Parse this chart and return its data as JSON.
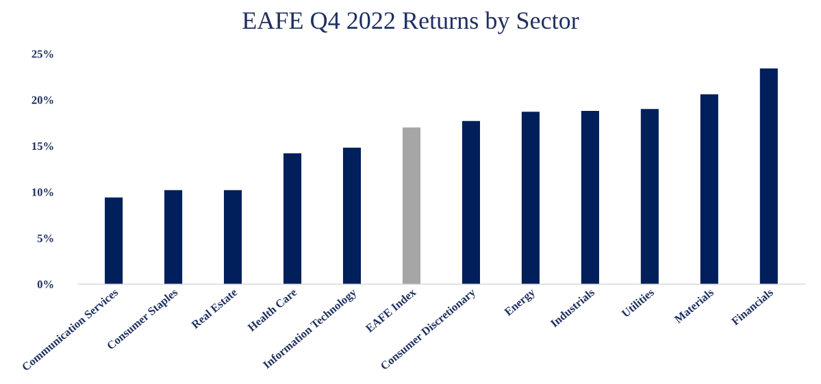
{
  "chart_data": {
    "type": "bar",
    "title": "EAFE Q4 2022 Returns by Sector",
    "categories": [
      "Communication Services",
      "Consumer Staples",
      "Real Estate",
      "Health Care",
      "Information Technology",
      "EAFE Index",
      "Consumer Discretionary",
      "Energy",
      "Industrials",
      "Utilities",
      "Materials",
      "Financials"
    ],
    "values": [
      9.4,
      10.2,
      10.2,
      14.2,
      14.8,
      17.0,
      17.7,
      18.7,
      18.8,
      19.0,
      20.6,
      23.4
    ],
    "colors": [
      "#001f5b",
      "#001f5b",
      "#001f5b",
      "#001f5b",
      "#001f5b",
      "#a6a6a6",
      "#001f5b",
      "#001f5b",
      "#001f5b",
      "#001f5b",
      "#001f5b",
      "#001f5b"
    ],
    "ylim": [
      0,
      25
    ],
    "yticks": [
      {
        "value": 0,
        "label": "0%"
      },
      {
        "value": 5,
        "label": "5%"
      },
      {
        "value": 10,
        "label": "10%"
      },
      {
        "value": 15,
        "label": "15%"
      },
      {
        "value": 20,
        "label": "20%"
      },
      {
        "value": 25,
        "label": "25%"
      }
    ],
    "grid": false,
    "legend": false
  }
}
